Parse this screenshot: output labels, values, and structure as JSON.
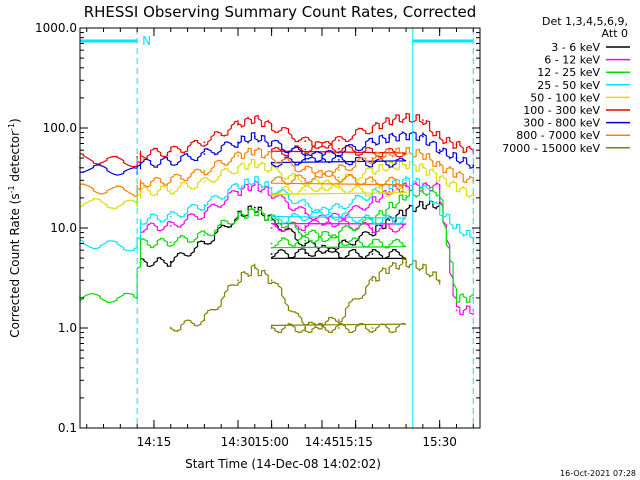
{
  "chart_data": {
    "type": "line",
    "title": "RHESSI Observing Summary Count Rates, Corrected",
    "xlabel": "Start Time (14-Dec-08 14:02:02)",
    "ylabel_main": "Corrected Count Rate (s",
    "ylabel_sup1": "-1",
    "ylabel_mid": " detector",
    "ylabel_sup2": "-1",
    "ylabel_end": ")",
    "yscale": "log",
    "ylim": [
      0.1,
      1000
    ],
    "xlim_minutes": [
      14.03,
      15.62
    ],
    "x_ticks": [
      {
        "t": 14.25,
        "label": "14:15"
      },
      {
        "t": 14.5,
        "label": "14:30"
      },
      {
        "t": 14.75,
        "label": "14:45"
      },
      {
        "t": 15.0,
        "label": "15:00"
      },
      {
        "t": 15.25,
        "label": "15:15"
      },
      {
        "t": 15.5,
        "label": "15:30"
      }
    ],
    "y_ticks": [
      {
        "v": 1000,
        "label": "1000.0"
      },
      {
        "v": 100,
        "label": "100.0"
      },
      {
        "v": 10,
        "label": "10.0"
      },
      {
        "v": 1,
        "label": "1.0"
      },
      {
        "v": 0.1,
        "label": "0.1"
      }
    ],
    "legend_header": [
      "Det 1,3,4,5,6,9,",
      "Att 0"
    ],
    "flags": {
      "night_label": "N",
      "night_segments": [
        [
          14.03,
          14.2
        ],
        [
          15.42,
          15.6
        ]
      ],
      "solid_lines": [
        14.03,
        15.42
      ],
      "dashed_lines": [
        14.2,
        15.6
      ]
    },
    "x": [
      14.03,
      14.2,
      14.21,
      14.3,
      14.4,
      14.5,
      14.55,
      14.6,
      14.7,
      14.8,
      14.9,
      15.0,
      15.1,
      15.2,
      15.3,
      15.35,
      15.4,
      15.45,
      15.5,
      15.55,
      15.6
    ],
    "series": [
      {
        "name": "3 - 6 keV",
        "color": "#000000",
        "values": [
          null,
          null,
          4.5,
          4.6,
          7,
          13,
          16,
          12,
          7,
          5.5,
          5.5,
          5.5,
          5.6,
          6.5,
          9,
          12,
          15,
          17,
          17,
          null,
          null
        ]
      },
      {
        "name": "6 - 12 keV",
        "color": "#ff00ff",
        "values": [
          null,
          null,
          10,
          10.5,
          14,
          23,
          27,
          22,
          14,
          11,
          10,
          10,
          10.5,
          13,
          18,
          23,
          26,
          26,
          26,
          1.5,
          1.5
        ]
      },
      {
        "name": "12 - 25 keV",
        "color": "#00dd00",
        "values": [
          2,
          2,
          7,
          7.2,
          8.5,
          13,
          15,
          12.5,
          9,
          7.5,
          7,
          7,
          7.5,
          9,
          12,
          16,
          21,
          23,
          23,
          2,
          2
        ]
      },
      {
        "name": "25 - 50 keV",
        "color": "#00e5ff",
        "values": [
          7,
          6.5,
          12,
          13,
          17,
          26,
          30,
          25,
          17,
          13,
          12,
          12,
          13,
          16,
          22,
          27,
          30,
          28,
          15,
          10,
          8
        ]
      },
      {
        "name": "50 - 100 keV",
        "color": "#dddd00",
        "values": [
          18,
          17,
          23,
          24,
          29,
          40,
          45,
          38,
          29,
          25,
          23,
          23,
          24,
          29,
          37,
          41,
          43,
          40,
          32,
          26,
          21
        ]
      },
      {
        "name": "100 - 300 keV",
        "color": "#ee0000",
        "values": [
          50,
          45,
          55,
          58,
          72,
          108,
          125,
          105,
          74,
          62,
          57,
          57,
          61,
          75,
          100,
          118,
          127,
          120,
          80,
          68,
          58
        ]
      },
      {
        "name": "300 - 800 keV",
        "color": "#0000dd",
        "values": [
          40,
          36,
          44,
          46,
          55,
          72,
          82,
          70,
          55,
          48,
          45,
          45,
          48,
          57,
          72,
          80,
          85,
          82,
          60,
          50,
          42
        ]
      },
      {
        "name": "800 - 7000 keV",
        "color": "#ff8000",
        "values": [
          25,
          23,
          28,
          30,
          37,
          53,
          60,
          52,
          38,
          32,
          29,
          29,
          31,
          38,
          50,
          56,
          58,
          55,
          42,
          35,
          29
        ]
      },
      {
        "name": "7000 - 15000 keV",
        "color": "#808000",
        "values": [
          null,
          null,
          null,
          1,
          1.2,
          3,
          4,
          3,
          1,
          1,
          1,
          1,
          1,
          1.2,
          3,
          4,
          4.5,
          4,
          3,
          null,
          null
        ]
      }
    ]
  },
  "footer_date": "16-Oct-2021 07:28"
}
